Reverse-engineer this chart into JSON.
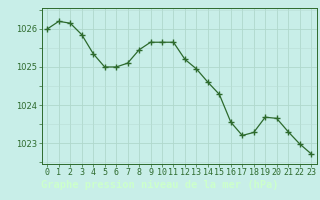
{
  "x": [
    0,
    1,
    2,
    3,
    4,
    5,
    6,
    7,
    8,
    9,
    10,
    11,
    12,
    13,
    14,
    15,
    16,
    17,
    18,
    19,
    20,
    21,
    22,
    23
  ],
  "y": [
    1026.0,
    1026.2,
    1026.15,
    1025.85,
    1025.35,
    1025.0,
    1025.0,
    1025.1,
    1025.45,
    1025.65,
    1025.65,
    1025.65,
    1025.2,
    1024.95,
    1024.6,
    1024.28,
    1023.55,
    1023.2,
    1023.28,
    1023.68,
    1023.65,
    1023.3,
    1022.98,
    1022.72
  ],
  "line_color": "#2d6a2d",
  "marker_color": "#2d6a2d",
  "plot_bg_color": "#c8eee8",
  "grid_color_major": "#b0d8cc",
  "grid_color_minor": "#b8ddd5",
  "bottom_bar_color": "#3a7a3a",
  "bottom_text_color": "#ccffcc",
  "title": "Graphe pression niveau de la mer (hPa)",
  "yticks": [
    1023,
    1024,
    1025,
    1026
  ],
  "ylim_min": 1022.45,
  "ylim_max": 1026.55,
  "tick_fontsize": 6.0,
  "title_fontsize": 7.5
}
